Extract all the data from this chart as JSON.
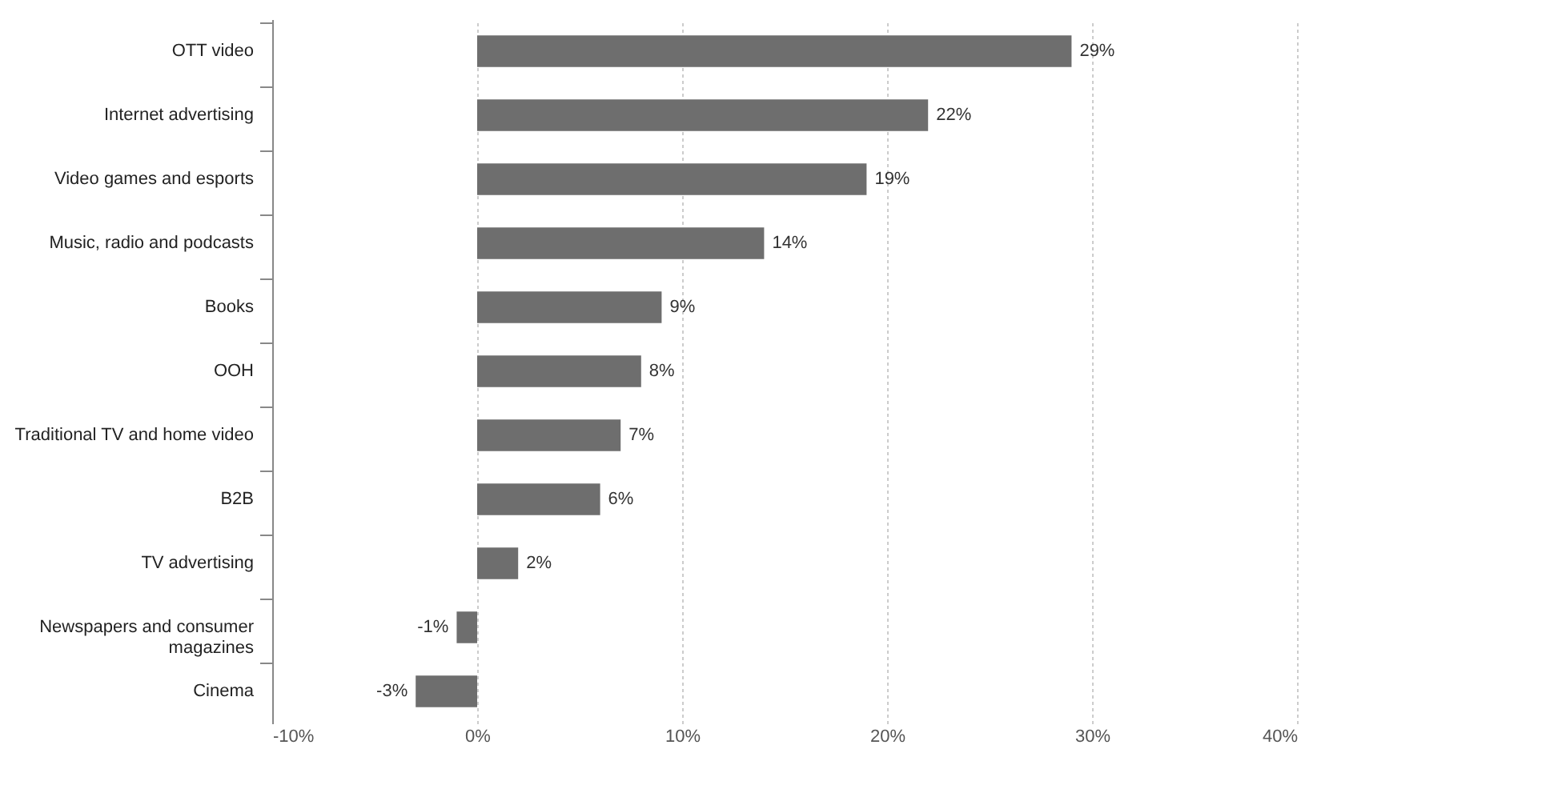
{
  "chart_data": {
    "type": "bar",
    "orientation": "horizontal",
    "categories": [
      "OTT video",
      "Internet advertising",
      "Video games and esports",
      "Music, radio and podcasts",
      "Books",
      "OOH",
      "Traditional TV and home video",
      "B2B",
      "TV advertising",
      "Newspapers and consumer magazines",
      "Cinema"
    ],
    "values": [
      29,
      22,
      19,
      14,
      9,
      8,
      7,
      6,
      2,
      -1,
      -3
    ],
    "value_labels": [
      "29%",
      "22%",
      "19%",
      "14%",
      "9%",
      "8%",
      "7%",
      "6%",
      "2%",
      "-1%",
      "-3%"
    ],
    "color": "#6e6e6e",
    "xlim": [
      -10,
      40
    ],
    "xticks": [
      {
        "value": -10,
        "label": "-10%"
      },
      {
        "value": 0,
        "label": "0%"
      },
      {
        "value": 10,
        "label": "10%"
      },
      {
        "value": 20,
        "label": "20%"
      },
      {
        "value": 30,
        "label": "30%"
      },
      {
        "value": 40,
        "label": "40%"
      }
    ],
    "grid": "x"
  }
}
